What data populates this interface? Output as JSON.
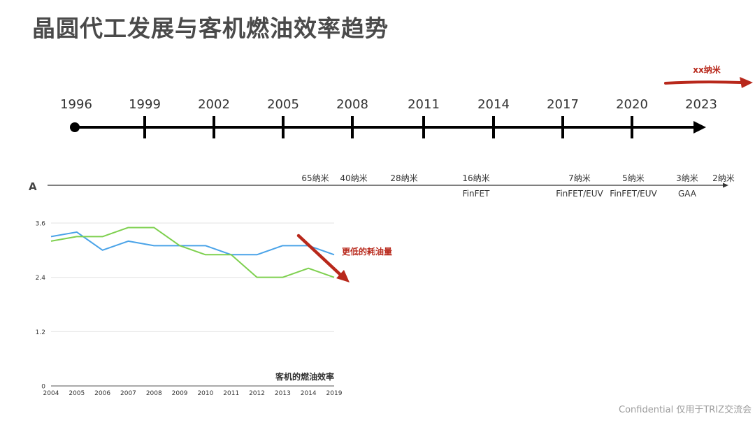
{
  "slide": {
    "title": "晶圆代工发展与客机燃油效率趋势",
    "footer": "Confidential 仅用于TRIZ交流会"
  },
  "timeline": {
    "years": [
      "1996",
      "1999",
      "2002",
      "2005",
      "2008",
      "2011",
      "2014",
      "2017",
      "2020",
      "2023"
    ],
    "future_label": "xx纳米"
  },
  "node_axis": {
    "label": "A",
    "nodes": [
      {
        "name": "65纳米",
        "tech": ""
      },
      {
        "name": "40纳米",
        "tech": ""
      },
      {
        "name": "28纳米",
        "tech": ""
      },
      {
        "name": "16纳米",
        "tech": "FinFET"
      },
      {
        "name": "7纳米",
        "tech": "FinFET/EUV"
      },
      {
        "name": "5纳米",
        "tech": "FinFET/EUV"
      },
      {
        "name": "3纳米",
        "tech": "GAA"
      },
      {
        "name": "2纳米",
        "tech": ""
      }
    ]
  },
  "annotation": {
    "text": "更低的耗油量",
    "color": "#b8281b"
  },
  "chart_data": {
    "type": "line",
    "title": "客机的燃油效率",
    "categories": [
      "2004",
      "2005",
      "2006",
      "2007",
      "2008",
      "2009",
      "2010",
      "2011",
      "2012",
      "2013",
      "2014",
      "2019"
    ],
    "series": [
      {
        "name": "",
        "color": "#4aa3e8",
        "values": [
          3.3,
          3.4,
          3.0,
          3.2,
          3.1,
          3.1,
          3.1,
          2.9,
          2.9,
          3.1,
          3.1,
          2.9
        ]
      },
      {
        "name": "",
        "color": "#7ed04f",
        "values": [
          3.2,
          3.3,
          3.3,
          3.5,
          3.5,
          3.1,
          2.9,
          2.9,
          2.4,
          2.4,
          2.6,
          2.4
        ]
      }
    ],
    "yticks": [
      0,
      1.2,
      2.4,
      3.6
    ],
    "ytick_labels": [
      "0",
      "1.2",
      "2.4",
      "3.6"
    ],
    "ylim": [
      0,
      3.6
    ],
    "grid": true
  }
}
